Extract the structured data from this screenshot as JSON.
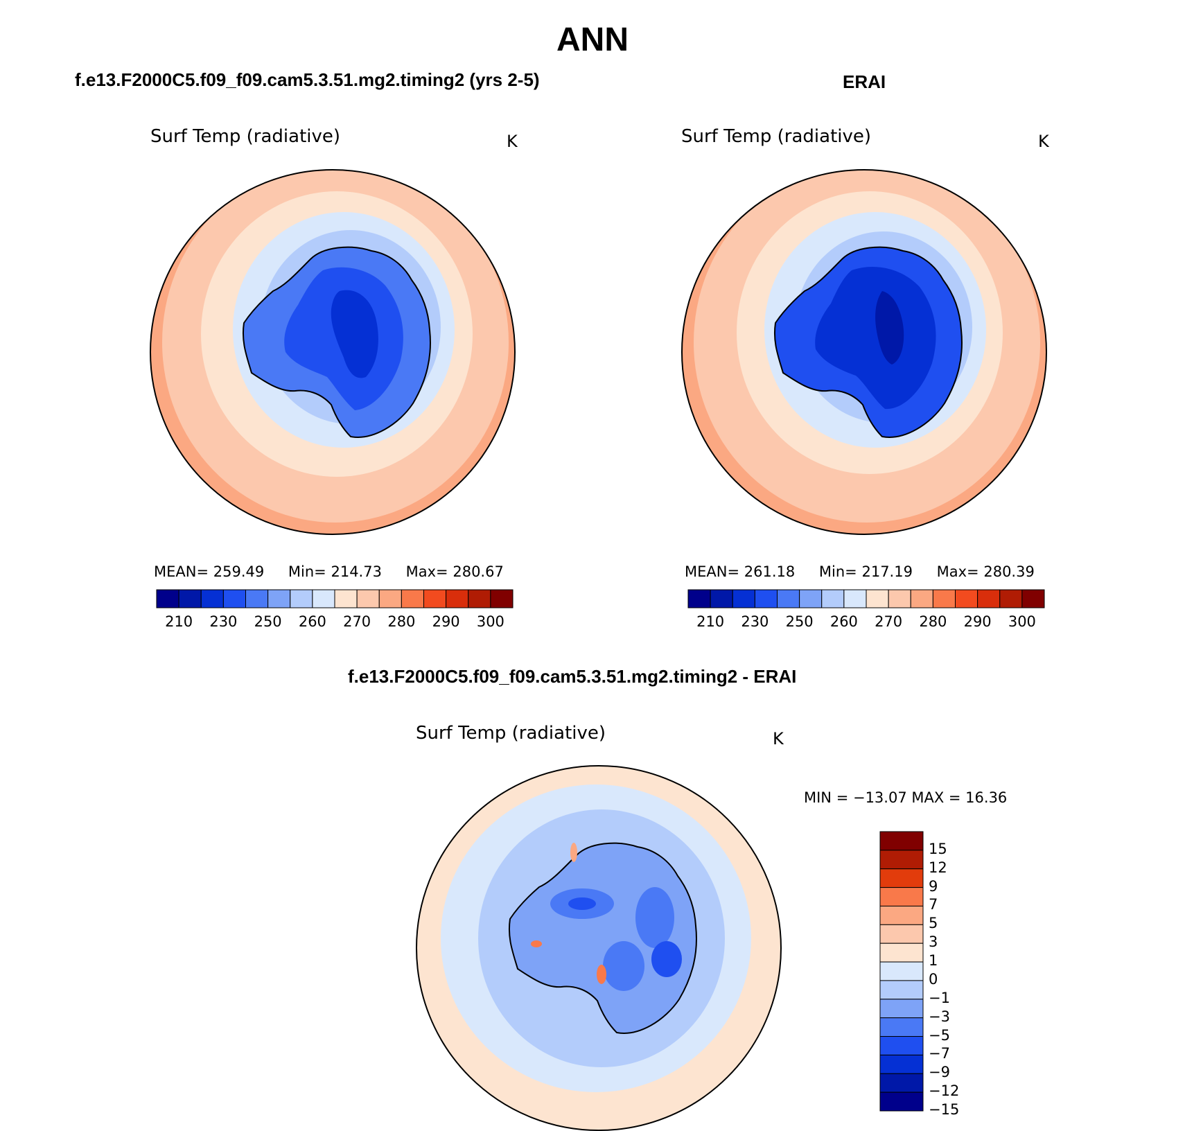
{
  "title": "ANN",
  "panels": {
    "model": {
      "title": "f.e13.F2000C5.f09_f09.cam5.3.51.mg2.timing2 (yrs 2-5)",
      "variable": "Surf Temp (radiative)",
      "units": "K",
      "mean_label": "MEAN=",
      "mean": "259.49",
      "min_label": "Min=",
      "min": "214.73",
      "max_label": "Max=",
      "max": "280.67"
    },
    "obs": {
      "title": "ERAI",
      "variable": "Surf Temp (radiative)",
      "units": "K",
      "mean_label": "MEAN=",
      "mean": "261.18",
      "min_label": "Min=",
      "min": "217.19",
      "max_label": "Max=",
      "max": "280.39"
    },
    "diff": {
      "title": "f.e13.F2000C5.f09_f09.cam5.3.51.mg2.timing2 - ERAI",
      "variable": "Surf Temp (radiative)",
      "units": "K",
      "minmax_text": "MIN = −13.07 MAX =   16.36"
    }
  },
  "chart_data": [
    {
      "type": "heatmap",
      "name": "model",
      "projection": "south polar stereographic",
      "title": "f.e13.F2000C5.f09_f09.cam5.3.51.mg2.timing2 (yrs 2-5)",
      "variable": "Surf Temp (radiative)",
      "units": "K",
      "stats": {
        "mean": 259.49,
        "min": 214.73,
        "max": 280.67
      },
      "colorbar_ticks": [
        "210",
        "230",
        "250",
        "260",
        "270",
        "280",
        "290",
        "300"
      ],
      "contour_levels": [
        210,
        220,
        230,
        240,
        250,
        255,
        260,
        265,
        270,
        275,
        280,
        285,
        290,
        295,
        300
      ]
    },
    {
      "type": "heatmap",
      "name": "obs",
      "projection": "south polar stereographic",
      "title": "ERAI",
      "variable": "Surf Temp (radiative)",
      "units": "K",
      "stats": {
        "mean": 261.18,
        "min": 217.19,
        "max": 280.39
      },
      "colorbar_ticks": [
        "210",
        "230",
        "250",
        "260",
        "270",
        "280",
        "290",
        "300"
      ],
      "contour_levels": [
        210,
        220,
        230,
        240,
        250,
        255,
        260,
        265,
        270,
        275,
        280,
        285,
        290,
        295,
        300
      ]
    },
    {
      "type": "heatmap",
      "name": "difference",
      "projection": "south polar stereographic",
      "title": "f.e13.F2000C5.f09_f09.cam5.3.51.mg2.timing2 - ERAI",
      "variable": "Surf Temp (radiative)",
      "units": "K",
      "stats": {
        "min": -13.07,
        "max": 16.36
      },
      "colorbar_ticks": [
        "15",
        "12",
        "9",
        "7",
        "5",
        "3",
        "1",
        "0",
        "−1",
        "−3",
        "−5",
        "−7",
        "−9",
        "−12",
        "−15"
      ],
      "contour_levels": [
        15,
        12,
        9,
        7,
        5,
        3,
        1,
        0,
        -1,
        -3,
        -5,
        -7,
        -9,
        -12,
        -15
      ]
    }
  ],
  "colors": {
    "abs_scale": [
      "#00008b",
      "#0018a8",
      "#0530d4",
      "#1f4ff0",
      "#4a79f5",
      "#7ea3f7",
      "#b3ccfb",
      "#d9e8fc",
      "#fde4d0",
      "#fcc8ad",
      "#fba882",
      "#f9794a",
      "#f24b1f",
      "#d92e0b",
      "#b01c04",
      "#800000"
    ],
    "diff_scale": [
      "#800000",
      "#b01c04",
      "#e23c0c",
      "#f9794a",
      "#fba882",
      "#fcc8ad",
      "#fde4d0",
      "#d9e8fc",
      "#b3ccfb",
      "#7ea3f7",
      "#4a79f5",
      "#1f4ff0",
      "#0530d4",
      "#0018a8",
      "#00008b"
    ]
  }
}
